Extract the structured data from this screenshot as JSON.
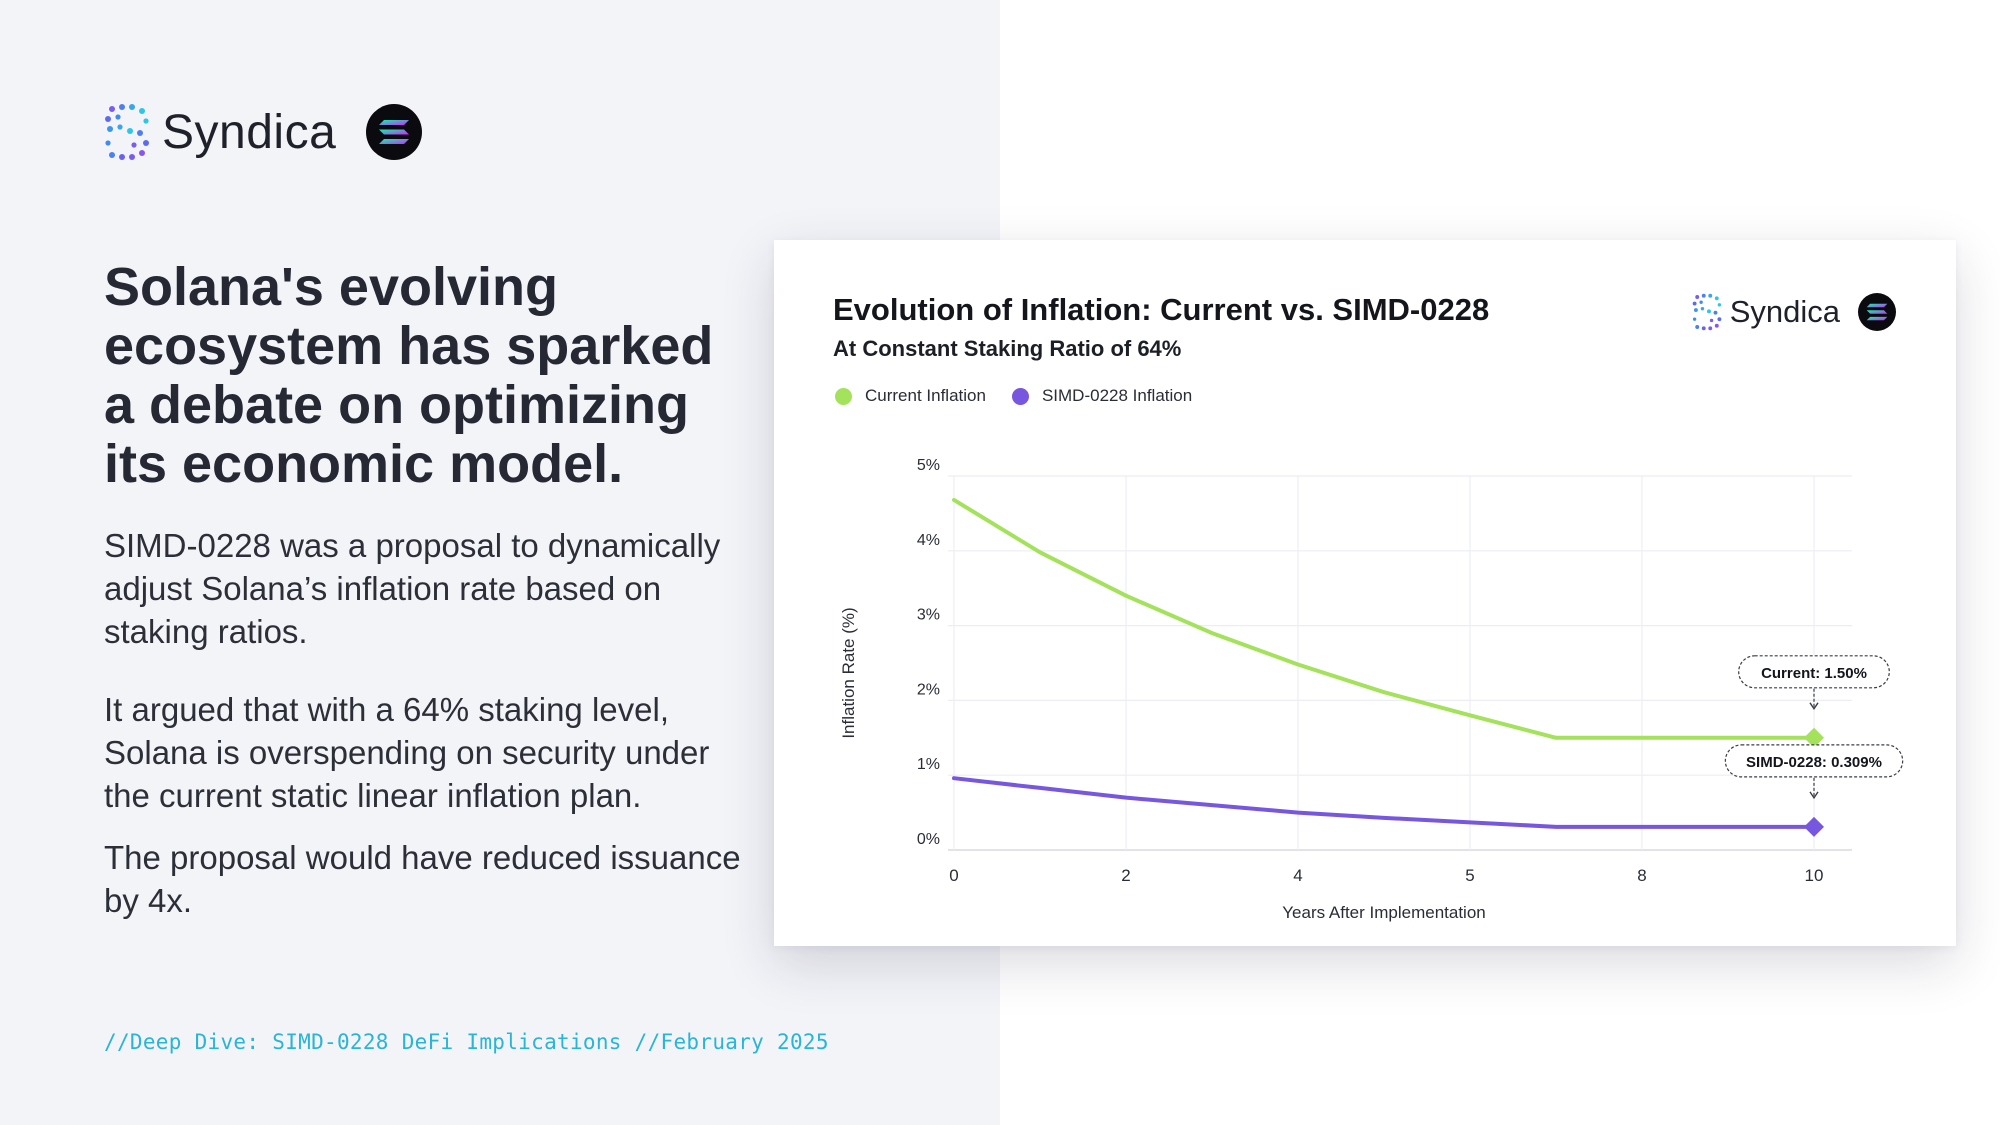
{
  "brand": {
    "name": "Syndica"
  },
  "headline": "Solana's evolving ecosystem has sparked a debate on optimizing its economic model.",
  "paragraphs": [
    "SIMD-0228 was a proposal to dynamically adjust Solana’s inflation rate based on staking ratios.",
    "It argued that with a 64% staking level, Solana is overspending on security under the current static linear inflation plan.",
    "The proposal would have reduced issuance by 4x."
  ],
  "footer": "//Deep Dive: SIMD-0228 DeFi Implications //February 2025",
  "colors": {
    "current": "#a3e25a",
    "simd": "#7756e0",
    "footer": "#2ab4d6"
  },
  "chart_data": {
    "type": "line",
    "title": "Evolution of Inflation: Current vs. SIMD-0228",
    "subtitle": "At Constant Staking Ratio of 64%",
    "xlabel": "Years After Implementation",
    "ylabel": "Inflation Rate (%)",
    "x_tick_labels": [
      "0",
      "2",
      "4",
      "5",
      "8",
      "10"
    ],
    "y_tick_labels": [
      "0%",
      "1%",
      "2%",
      "3%",
      "4%",
      "5%"
    ],
    "ylim": [
      0,
      5
    ],
    "xlim": [
      0,
      10
    ],
    "series": [
      {
        "name": "Current Inflation",
        "color": "#a3e25a",
        "x": [
          0,
          1,
          2,
          3,
          4,
          5,
          6,
          7,
          8,
          9,
          10
        ],
        "values": [
          4.68,
          3.98,
          3.4,
          2.9,
          2.48,
          2.11,
          1.8,
          1.5,
          1.5,
          1.5,
          1.5
        ],
        "end_label": "Current: 1.50%"
      },
      {
        "name": "SIMD-0228 Inflation",
        "color": "#7756e0",
        "x": [
          0,
          1,
          2,
          3,
          4,
          5,
          6,
          7,
          8,
          9,
          10
        ],
        "values": [
          0.96,
          0.83,
          0.7,
          0.6,
          0.5,
          0.43,
          0.37,
          0.309,
          0.309,
          0.309,
          0.309
        ],
        "end_label": "SIMD-0228: 0.309%"
      }
    ],
    "grid": true,
    "legend": "top-left"
  }
}
